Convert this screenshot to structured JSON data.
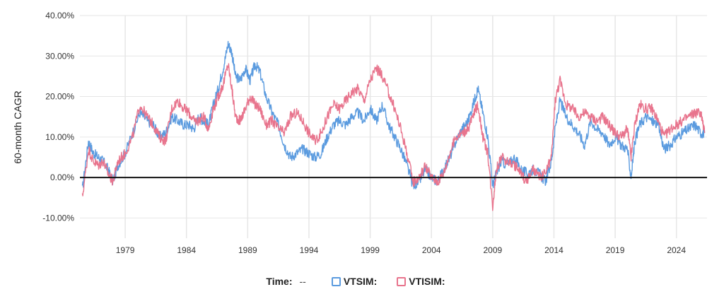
{
  "chart_data": {
    "type": "line",
    "ylabel": "60-month CAGR",
    "ylim": [
      -15,
      40
    ],
    "y_ticks": [
      "40.00%",
      "30.00%",
      "20.00%",
      "10.00%",
      "0.00%",
      "-10.00%"
    ],
    "y_tick_values": [
      40,
      30,
      20,
      10,
      0,
      -10
    ],
    "x_ticks": [
      "1979",
      "1984",
      "1989",
      "1994",
      "1999",
      "2004",
      "2009",
      "2014",
      "2019",
      "2024"
    ],
    "x_tick_values": [
      1979,
      1984,
      1989,
      1994,
      1999,
      2004,
      2009,
      2014,
      2019,
      2024
    ],
    "xlim": [
      1975.3,
      2026.5
    ],
    "grid": true,
    "reference_line_y": 0,
    "series": [
      {
        "name": "VTSIM:",
        "color": "#5b9bdf",
        "x": [
          1975.5,
          1976.0,
          1976.4,
          1976.8,
          1977.2,
          1977.6,
          1978.0,
          1978.4,
          1979.0,
          1979.6,
          1980.2,
          1980.8,
          1981.3,
          1981.8,
          1982.3,
          1982.8,
          1983.3,
          1983.8,
          1984.2,
          1984.6,
          1985.0,
          1985.4,
          1985.8,
          1986.2,
          1986.6,
          1987.0,
          1987.4,
          1987.7,
          1988.0,
          1988.4,
          1988.8,
          1989.2,
          1989.6,
          1990.0,
          1990.5,
          1991.0,
          1991.5,
          1992.0,
          1992.5,
          1993.0,
          1993.5,
          1994.0,
          1994.5,
          1995.0,
          1995.5,
          1996.0,
          1996.5,
          1997.0,
          1997.5,
          1998.0,
          1998.5,
          1999.0,
          1999.5,
          2000.0,
          2000.5,
          2001.0,
          2001.5,
          2002.0,
          2002.5,
          2003.0,
          2003.5,
          2004.0,
          2004.5,
          2005.0,
          2005.5,
          2006.0,
          2006.5,
          2007.0,
          2007.5,
          2007.8,
          2008.2,
          2008.6,
          2009.0,
          2009.3,
          2009.7,
          2010.2,
          2010.8,
          2011.3,
          2011.8,
          2012.3,
          2012.8,
          2013.3,
          2013.8,
          2014.1,
          2014.5,
          2015.0,
          2015.5,
          2016.0,
          2016.5,
          2017.0,
          2017.5,
          2018.0,
          2018.5,
          2019.0,
          2019.5,
          2020.0,
          2020.3,
          2020.6,
          2021.0,
          2021.5,
          2022.0,
          2022.5,
          2023.0,
          2023.5,
          2024.0,
          2024.5,
          2025.0,
          2025.5,
          2026.0,
          2026.3
        ],
        "y": [
          -3,
          9,
          6,
          5,
          4,
          2,
          -1,
          3,
          6,
          11,
          16,
          14,
          13,
          10,
          11,
          15,
          14,
          13,
          13,
          12,
          15,
          14,
          13,
          18,
          22,
          27,
          33,
          31,
          25,
          24,
          27,
          24,
          28,
          26,
          20,
          16,
          13,
          8,
          5,
          6,
          7,
          6,
          5,
          6,
          10,
          13,
          14,
          13,
          15,
          16,
          14,
          17,
          14,
          18,
          13,
          10,
          7,
          3,
          -2,
          -1,
          2,
          0,
          -1,
          2,
          5,
          9,
          12,
          14,
          19,
          22,
          16,
          10,
          -2,
          1,
          4,
          3,
          5,
          2,
          1,
          2,
          1,
          -1,
          4,
          12,
          19,
          15,
          13,
          11,
          8,
          14,
          12,
          11,
          8,
          10,
          8,
          7,
          0,
          9,
          13,
          15,
          14,
          13,
          7,
          8,
          10,
          11,
          12,
          13,
          11,
          11
        ]
      },
      {
        "name": "VTISIM:",
        "color": "#e8748d",
        "x": [
          1975.5,
          1976.0,
          1976.4,
          1976.8,
          1977.2,
          1977.6,
          1978.0,
          1978.4,
          1979.0,
          1979.6,
          1980.2,
          1980.8,
          1981.3,
          1981.8,
          1982.3,
          1982.8,
          1983.3,
          1983.8,
          1984.2,
          1984.6,
          1985.0,
          1985.4,
          1985.8,
          1986.2,
          1986.6,
          1987.0,
          1987.4,
          1987.7,
          1988.0,
          1988.4,
          1988.8,
          1989.2,
          1989.6,
          1990.0,
          1990.5,
          1991.0,
          1991.5,
          1992.0,
          1992.5,
          1993.0,
          1993.5,
          1994.0,
          1994.5,
          1995.0,
          1995.5,
          1996.0,
          1996.5,
          1997.0,
          1997.5,
          1998.0,
          1998.5,
          1999.0,
          1999.5,
          2000.0,
          2000.5,
          2001.0,
          2001.5,
          2002.0,
          2002.5,
          2003.0,
          2003.5,
          2004.0,
          2004.5,
          2005.0,
          2005.5,
          2006.0,
          2006.5,
          2007.0,
          2007.5,
          2007.8,
          2008.2,
          2008.6,
          2009.0,
          2009.3,
          2009.7,
          2010.2,
          2010.8,
          2011.3,
          2011.8,
          2012.3,
          2012.8,
          2013.3,
          2013.8,
          2014.1,
          2014.5,
          2015.0,
          2015.5,
          2016.0,
          2016.5,
          2017.0,
          2017.5,
          2018.0,
          2018.5,
          2019.0,
          2019.5,
          2020.0,
          2020.3,
          2020.6,
          2021.0,
          2021.5,
          2022.0,
          2022.5,
          2023.0,
          2023.5,
          2024.0,
          2024.5,
          2025.0,
          2025.5,
          2026.0,
          2026.3
        ],
        "y": [
          -5,
          7,
          4,
          3,
          4,
          1,
          -1,
          4,
          6,
          10,
          18,
          15,
          13,
          10,
          9,
          17,
          19,
          17,
          16,
          14,
          14,
          15,
          12,
          17,
          20,
          23,
          28,
          22,
          15,
          14,
          17,
          20,
          18,
          17,
          13,
          14,
          12,
          11,
          15,
          16,
          14,
          11,
          9,
          11,
          15,
          18,
          17,
          19,
          21,
          22,
          19,
          24,
          27,
          25,
          21,
          17,
          12,
          6,
          -1,
          0,
          3,
          0,
          -1,
          1,
          6,
          10,
          11,
          12,
          16,
          18,
          10,
          6,
          -7,
          2,
          5,
          4,
          3,
          1,
          -1,
          2,
          0,
          1,
          5,
          19,
          24,
          18,
          17,
          15,
          16,
          15,
          14,
          15,
          13,
          11,
          10,
          12,
          5,
          13,
          18,
          17,
          17,
          14,
          10,
          12,
          13,
          14,
          15,
          16,
          16,
          11
        ]
      }
    ]
  },
  "legend": {
    "time_label": "Time:",
    "time_value": "--",
    "series_labels": [
      "VTSIM:",
      "VTISIM:"
    ]
  }
}
